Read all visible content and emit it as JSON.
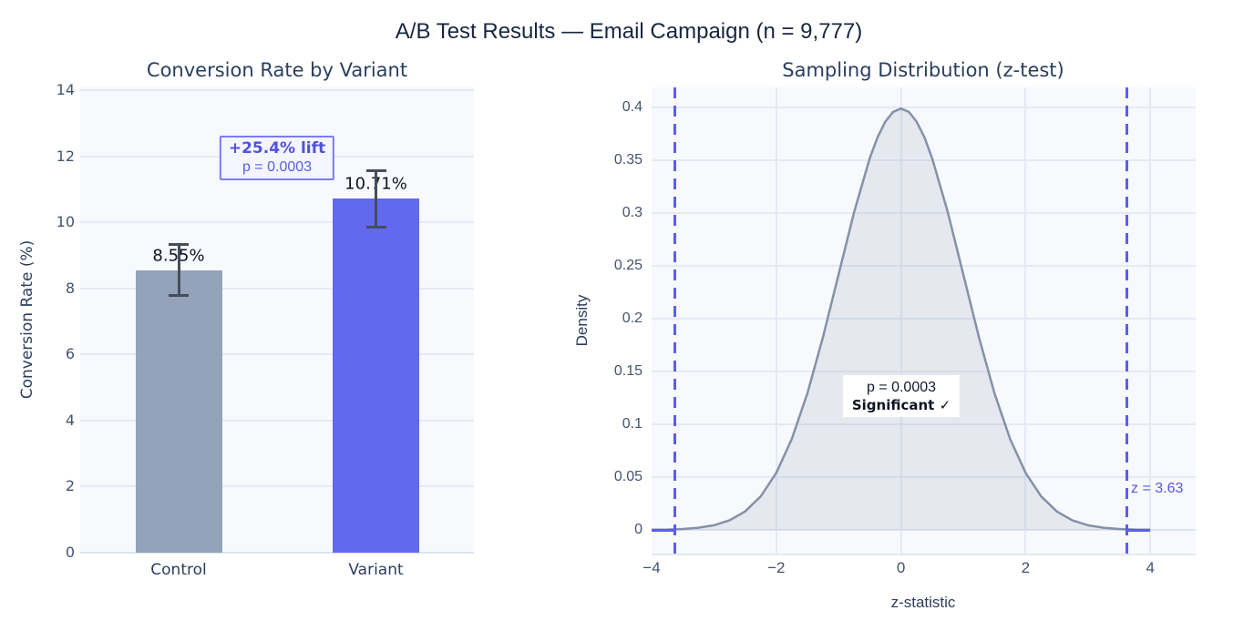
{
  "page": {
    "main_title": "A/B Test Results — Email Campaign (n = 9,777)"
  },
  "colors": {
    "page_bg": "#ffffff",
    "plot_bg": "#f8f9fc",
    "gridline": "#e4eaf4",
    "zeroline": "#dce3ef",
    "control_bar": "#94a3b9",
    "variant_bar": "#6269ee",
    "error_bar": "#454d5c",
    "curve_stroke": "#8591a8",
    "curve_fill": "rgba(134,147,170,0.17)",
    "critical_line": "#5a5ef0",
    "title_text": "#17273f",
    "subtitle_text": "#2a3f5f",
    "tick_text": "#42536e",
    "annotation_purple": "#4f52d9"
  },
  "chart_data": [
    {
      "type": "bar",
      "title": "Conversion Rate by Variant",
      "xlabel": "",
      "ylabel": "Conversion Rate (%)",
      "categories": [
        "Control",
        "Variant"
      ],
      "values": [
        8.55,
        10.71
      ],
      "errors": [
        0.79,
        0.87
      ],
      "bar_labels": [
        "8.55%",
        "10.71%"
      ],
      "bar_colors": [
        "#94a3b9",
        "#6269ee"
      ],
      "ylim": [
        0,
        14
      ],
      "yticks": [
        0,
        2,
        4,
        6,
        8,
        10,
        12,
        14
      ],
      "ytick_labels": [
        "0",
        "2",
        "4",
        "6",
        "8",
        "10",
        "12",
        "14"
      ],
      "grid": "on",
      "annotation": {
        "line1": "+25.4% lift",
        "line2": "p = 0.0003"
      }
    },
    {
      "type": "area",
      "title": "Sampling Distribution (z-test)",
      "xlabel": "z-statistic",
      "ylabel": "Density",
      "xlim": [
        -4,
        4.73
      ],
      "ylim": [
        0,
        0.418
      ],
      "xticks": [
        -4,
        -2,
        0,
        2,
        4
      ],
      "xtick_labels": [
        "−4",
        "−2",
        "0",
        "2",
        "4"
      ],
      "yticks": [
        0,
        0.05,
        0.1,
        0.15,
        0.2,
        0.25,
        0.3,
        0.35,
        0.4
      ],
      "ytick_labels": [
        "0",
        "0.05",
        "0.1",
        "0.15",
        "0.2",
        "0.25",
        "0.3",
        "0.35",
        "0.4"
      ],
      "grid": "on",
      "curve": {
        "z": [
          -4,
          -3.75,
          -3.5,
          -3.25,
          -3,
          -2.75,
          -2.5,
          -2.25,
          -2,
          -1.75,
          -1.5,
          -1.25,
          -1,
          -0.75,
          -0.5,
          -0.375,
          -0.25,
          -0.125,
          0,
          0.125,
          0.25,
          0.375,
          0.5,
          0.75,
          1,
          1.25,
          1.5,
          1.75,
          2,
          2.25,
          2.5,
          2.75,
          3,
          3.25,
          3.5,
          3.75,
          4
        ],
        "density": [
          0.00013,
          0.00035,
          0.00087,
          0.00203,
          0.00443,
          0.00909,
          0.01753,
          0.03174,
          0.05399,
          0.08628,
          0.12952,
          0.18265,
          0.24197,
          0.30114,
          0.35207,
          0.37187,
          0.38667,
          0.39584,
          0.39894,
          0.39584,
          0.38667,
          0.37187,
          0.35207,
          0.30114,
          0.24197,
          0.18265,
          0.12952,
          0.08628,
          0.05399,
          0.03174,
          0.01753,
          0.00909,
          0.00443,
          0.00203,
          0.00087,
          0.00035,
          0.00013
        ]
      },
      "critical_z": [
        -3.63,
        3.63
      ],
      "rejection_segments": [
        [
          -4,
          -3.63
        ],
        [
          3.63,
          4
        ]
      ],
      "z_annotation": "z = 3.63",
      "annotation": {
        "line1": "p = 0.0003",
        "line2": "Significant ✓"
      }
    }
  ]
}
